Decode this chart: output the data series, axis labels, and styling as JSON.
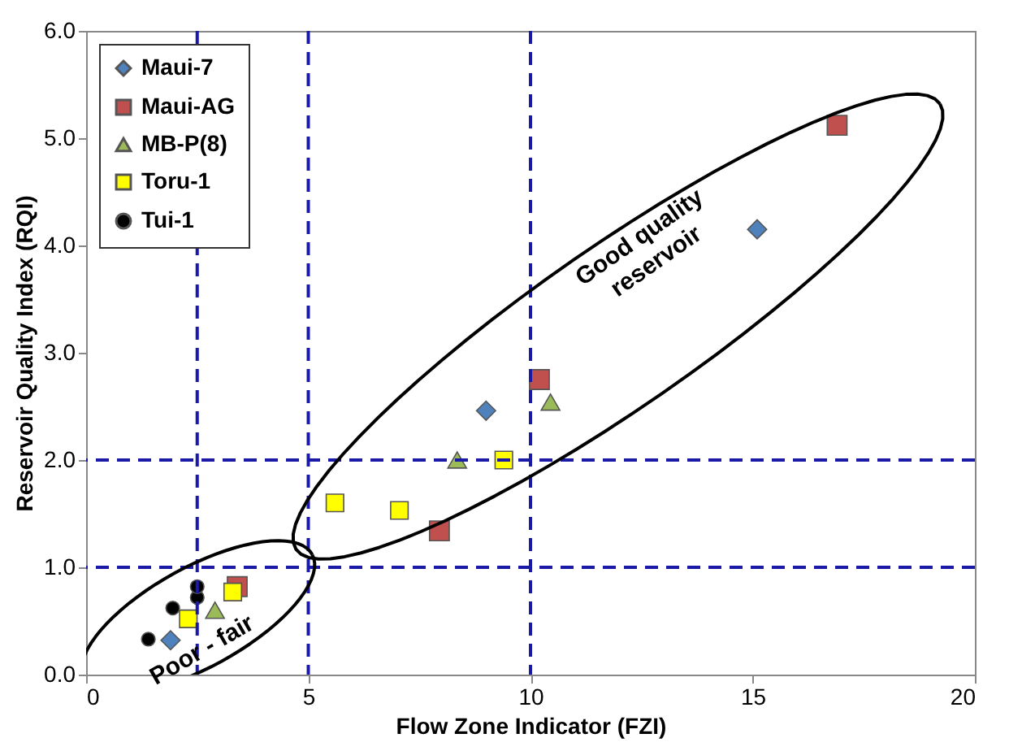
{
  "chart_data": {
    "type": "scatter",
    "xlabel": "Flow Zone Indicator (FZI)",
    "ylabel": "Reservoir Quality Index (RQI)",
    "xlim": [
      0,
      20
    ],
    "xticks": [
      0,
      5,
      10,
      15,
      20
    ],
    "ylim": [
      0,
      6
    ],
    "yticks": [
      {
        "value": 0,
        "label": "0.0"
      },
      {
        "value": 1,
        "label": "1.0"
      },
      {
        "value": 2,
        "label": "2.0"
      },
      {
        "value": 3,
        "label": "3.0"
      },
      {
        "value": 4,
        "label": "4.0"
      },
      {
        "value": 5,
        "label": "5.0"
      },
      {
        "value": 6,
        "label": "6.0"
      }
    ],
    "grid": false,
    "legend": "top left",
    "series": [
      {
        "name": "Maui-7",
        "color": "#4f81bd",
        "marker": "diamond",
        "x": [
          1.9,
          9.0,
          15.1
        ],
        "values": [
          0.32,
          2.46,
          4.15
        ]
      },
      {
        "name": "Maui-AG",
        "color": "#c0504d",
        "marker": "square",
        "x": [
          3.4,
          7.95,
          10.2,
          16.9
        ],
        "values": [
          0.82,
          1.34,
          2.75,
          5.12
        ]
      },
      {
        "name": "MB-P(8)",
        "color": "#9bbb59",
        "marker": "triangle",
        "x": [
          2.9,
          8.35,
          10.45
        ],
        "values": [
          0.6,
          2.0,
          2.54
        ]
      },
      {
        "name": "Toru-1",
        "color": "#ffff00",
        "marker": "square",
        "x": [
          2.3,
          3.3,
          5.6,
          7.05,
          9.4
        ],
        "values": [
          0.52,
          0.77,
          1.6,
          1.53,
          2.0
        ]
      },
      {
        "name": "Tui-1",
        "color": "#000000",
        "marker": "circle",
        "x": [
          1.4,
          1.95,
          2.5,
          2.5
        ],
        "values": [
          0.33,
          0.62,
          0.72,
          0.82
        ]
      }
    ],
    "ref_lines": [
      {
        "axis": "x",
        "value": 2.5,
        "color": "#1a1aa6",
        "line_style": "dashed"
      },
      {
        "axis": "x",
        "value": 5,
        "color": "#1a1aa6",
        "line_style": "dashed"
      },
      {
        "axis": "x",
        "value": 10,
        "color": "#1a1aa6",
        "line_style": "dashed"
      },
      {
        "axis": "y",
        "value": 1,
        "color": "#1a1aa6",
        "line_style": "dashed"
      },
      {
        "axis": "y",
        "value": 2,
        "color": "#1a1aa6",
        "line_style": "dashed"
      }
    ],
    "annotations": [
      {
        "text": "Good quality reservoir"
      },
      {
        "text": "Poor - fair"
      }
    ]
  }
}
